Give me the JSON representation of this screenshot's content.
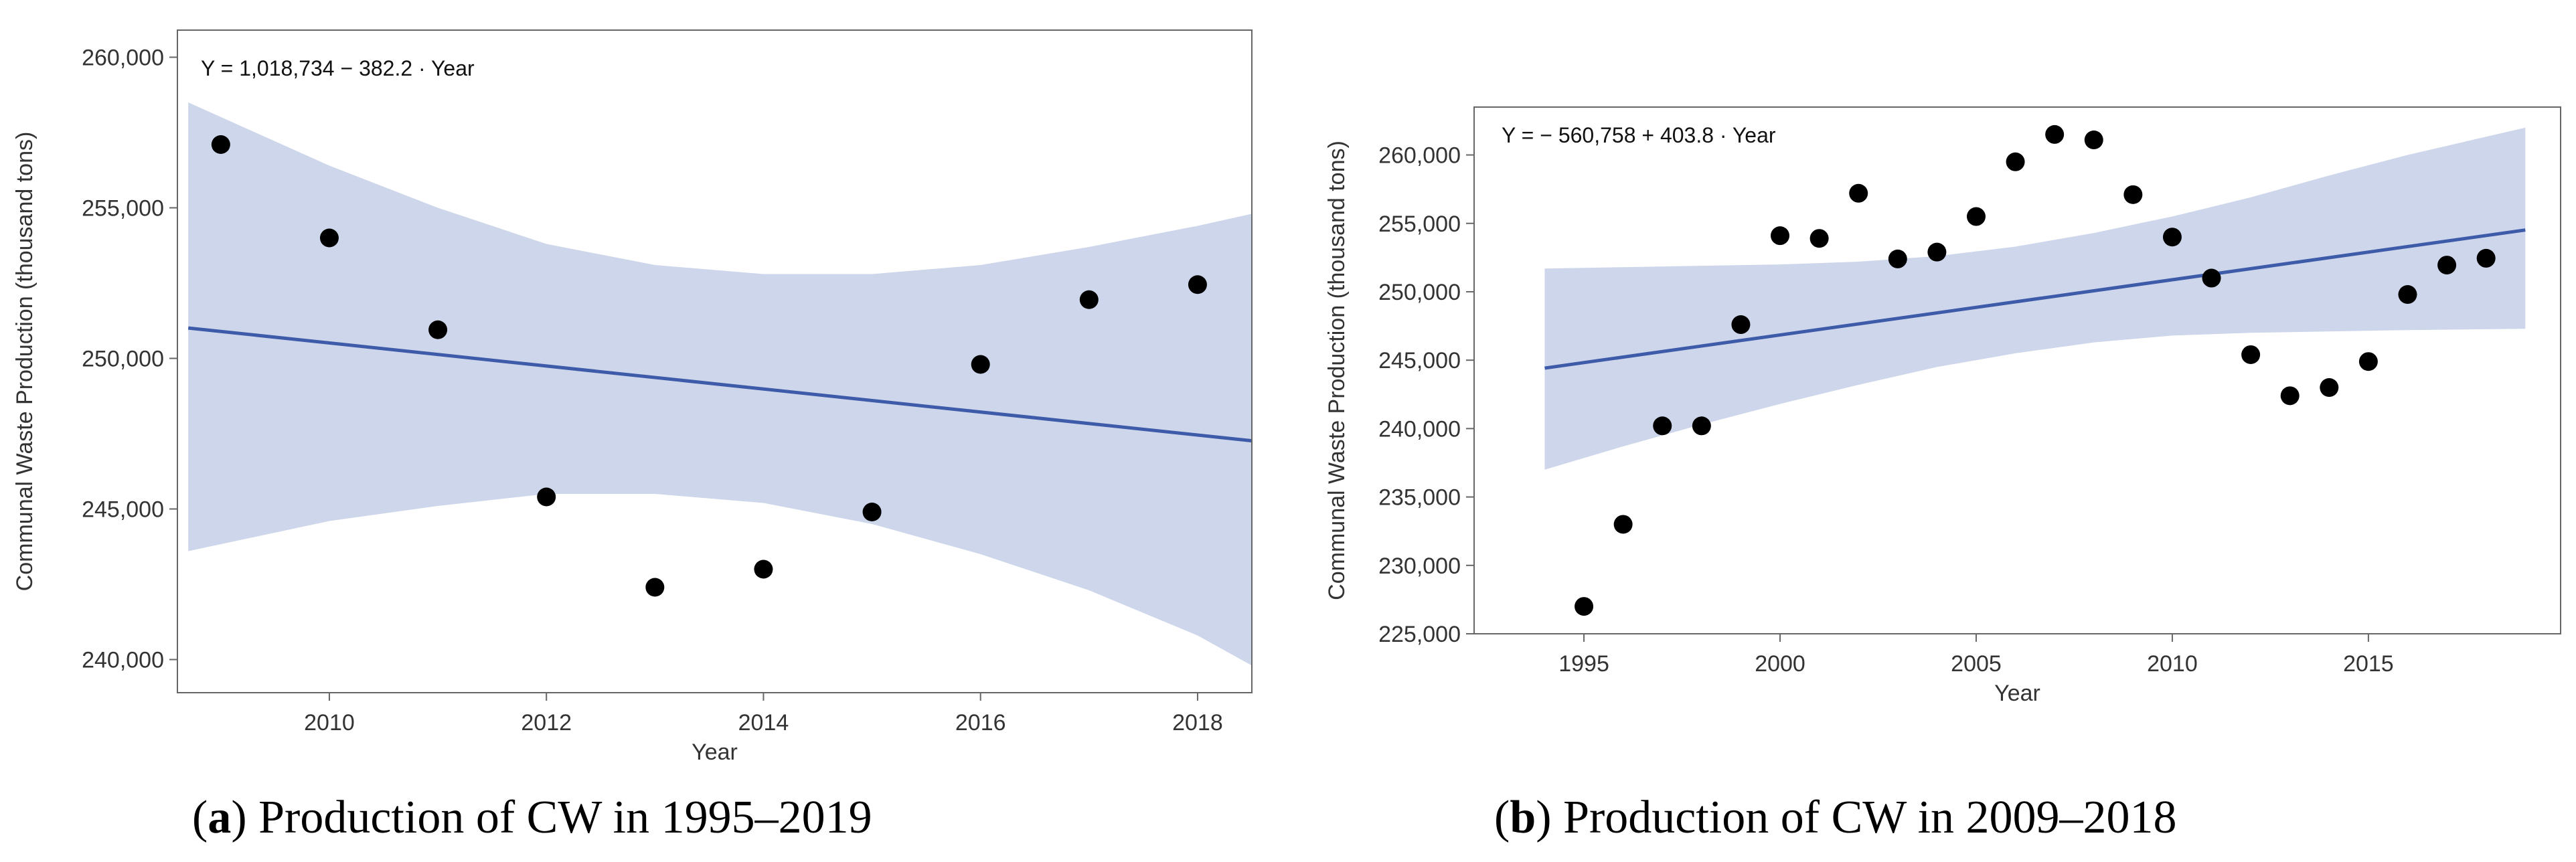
{
  "captions": [
    {
      "letter": "a",
      "text": "Production of CW in 1995–2019"
    },
    {
      "letter": "b",
      "text": "Production of CW in 2009–2018"
    }
  ],
  "colors": {
    "band": "#cdd6ea",
    "line": "#3d5ba8",
    "point": "#000000",
    "frame": "#666666"
  },
  "chart_data": [
    {
      "type": "scatter",
      "title": "",
      "equation": "Y = 1,018,734 − 382.2 · Year",
      "xlabel": "Year",
      "ylabel": "Communal Waste Production (thousand tons)",
      "xlim": [
        2008.6,
        2018.5
      ],
      "ylim": [
        238900,
        260900
      ],
      "xticks": [
        2010,
        2012,
        2014,
        2016,
        2018
      ],
      "yticks": [
        240000,
        245000,
        250000,
        255000,
        260000
      ],
      "ytick_labels": [
        "240,000",
        "245,000",
        "250,000",
        "255,000",
        "260,000"
      ],
      "points": [
        [
          2009,
          257100
        ],
        [
          2010,
          254000
        ],
        [
          2011,
          250950
        ],
        [
          2012,
          245400
        ],
        [
          2013,
          242400
        ],
        [
          2014,
          243000
        ],
        [
          2015,
          244900
        ],
        [
          2016,
          249800
        ],
        [
          2017,
          251950
        ],
        [
          2018,
          252450
        ]
      ],
      "fit": {
        "intercept": 1018734,
        "slope": -382.2
      },
      "band": {
        "upper": [
          [
            2008.7,
            258500
          ],
          [
            2010,
            256400
          ],
          [
            2011,
            255000
          ],
          [
            2012,
            253800
          ],
          [
            2013,
            253100
          ],
          [
            2014,
            252800
          ],
          [
            2015,
            252800
          ],
          [
            2016,
            253100
          ],
          [
            2017,
            253700
          ],
          [
            2018,
            254400
          ],
          [
            2018.5,
            254800
          ]
        ],
        "lower": [
          [
            2008.7,
            243600
          ],
          [
            2010,
            244600
          ],
          [
            2011,
            245100
          ],
          [
            2012,
            245500
          ],
          [
            2013,
            245500
          ],
          [
            2014,
            245200
          ],
          [
            2015,
            244500
          ],
          [
            2016,
            243500
          ],
          [
            2017,
            242300
          ],
          [
            2018,
            240800
          ],
          [
            2018.5,
            239800
          ]
        ]
      }
    },
    {
      "type": "scatter",
      "title": "",
      "equation": "Y = − 560,758 + 403.8 · Year",
      "xlabel": "Year",
      "ylabel": "Communal Waste Production (thousand tons)",
      "xlim": [
        1992.2,
        2019.9
      ],
      "ylim": [
        225000,
        263500
      ],
      "xticks": [
        1995,
        2000,
        2005,
        2010,
        2015
      ],
      "yticks": [
        225000,
        230000,
        235000,
        240000,
        245000,
        250000,
        255000,
        260000
      ],
      "ytick_labels": [
        "225,000",
        "230,000",
        "235,000",
        "240,000",
        "245,000",
        "250,000",
        "255,000",
        "260,000"
      ],
      "points": [
        [
          1995,
          227000
        ],
        [
          1996,
          233000
        ],
        [
          1997,
          240200
        ],
        [
          1998,
          240200
        ],
        [
          1999,
          247600
        ],
        [
          2000,
          254100
        ],
        [
          2001,
          253900
        ],
        [
          2002,
          257200
        ],
        [
          2003,
          252400
        ],
        [
          2004,
          252900
        ],
        [
          2005,
          255500
        ],
        [
          2006,
          259500
        ],
        [
          2007,
          261500
        ],
        [
          2008,
          261100
        ],
        [
          2009,
          257100
        ],
        [
          2010,
          254000
        ],
        [
          2011,
          251000
        ],
        [
          2012,
          245400
        ],
        [
          2013,
          242400
        ],
        [
          2014,
          243000
        ],
        [
          2015,
          244900
        ],
        [
          2016,
          249800
        ],
        [
          2017,
          251950
        ],
        [
          2018,
          252450
        ]
      ],
      "fit": {
        "intercept": -560758,
        "slope": 403.8
      },
      "band": {
        "upper": [
          [
            1994,
            251700
          ],
          [
            1996,
            251800
          ],
          [
            1998,
            251900
          ],
          [
            2000,
            252000
          ],
          [
            2002,
            252200
          ],
          [
            2004,
            252600
          ],
          [
            2006,
            253300
          ],
          [
            2008,
            254300
          ],
          [
            2010,
            255500
          ],
          [
            2012,
            256900
          ],
          [
            2014,
            258500
          ],
          [
            2016,
            260000
          ],
          [
            2019,
            262000
          ]
        ],
        "lower": [
          [
            1994,
            237000
          ],
          [
            1996,
            238700
          ],
          [
            1998,
            240300
          ],
          [
            2000,
            241800
          ],
          [
            2002,
            243200
          ],
          [
            2004,
            244500
          ],
          [
            2006,
            245500
          ],
          [
            2008,
            246300
          ],
          [
            2010,
            246800
          ],
          [
            2012,
            247000
          ],
          [
            2014,
            247100
          ],
          [
            2016,
            247200
          ],
          [
            2019,
            247300
          ]
        ]
      }
    }
  ]
}
